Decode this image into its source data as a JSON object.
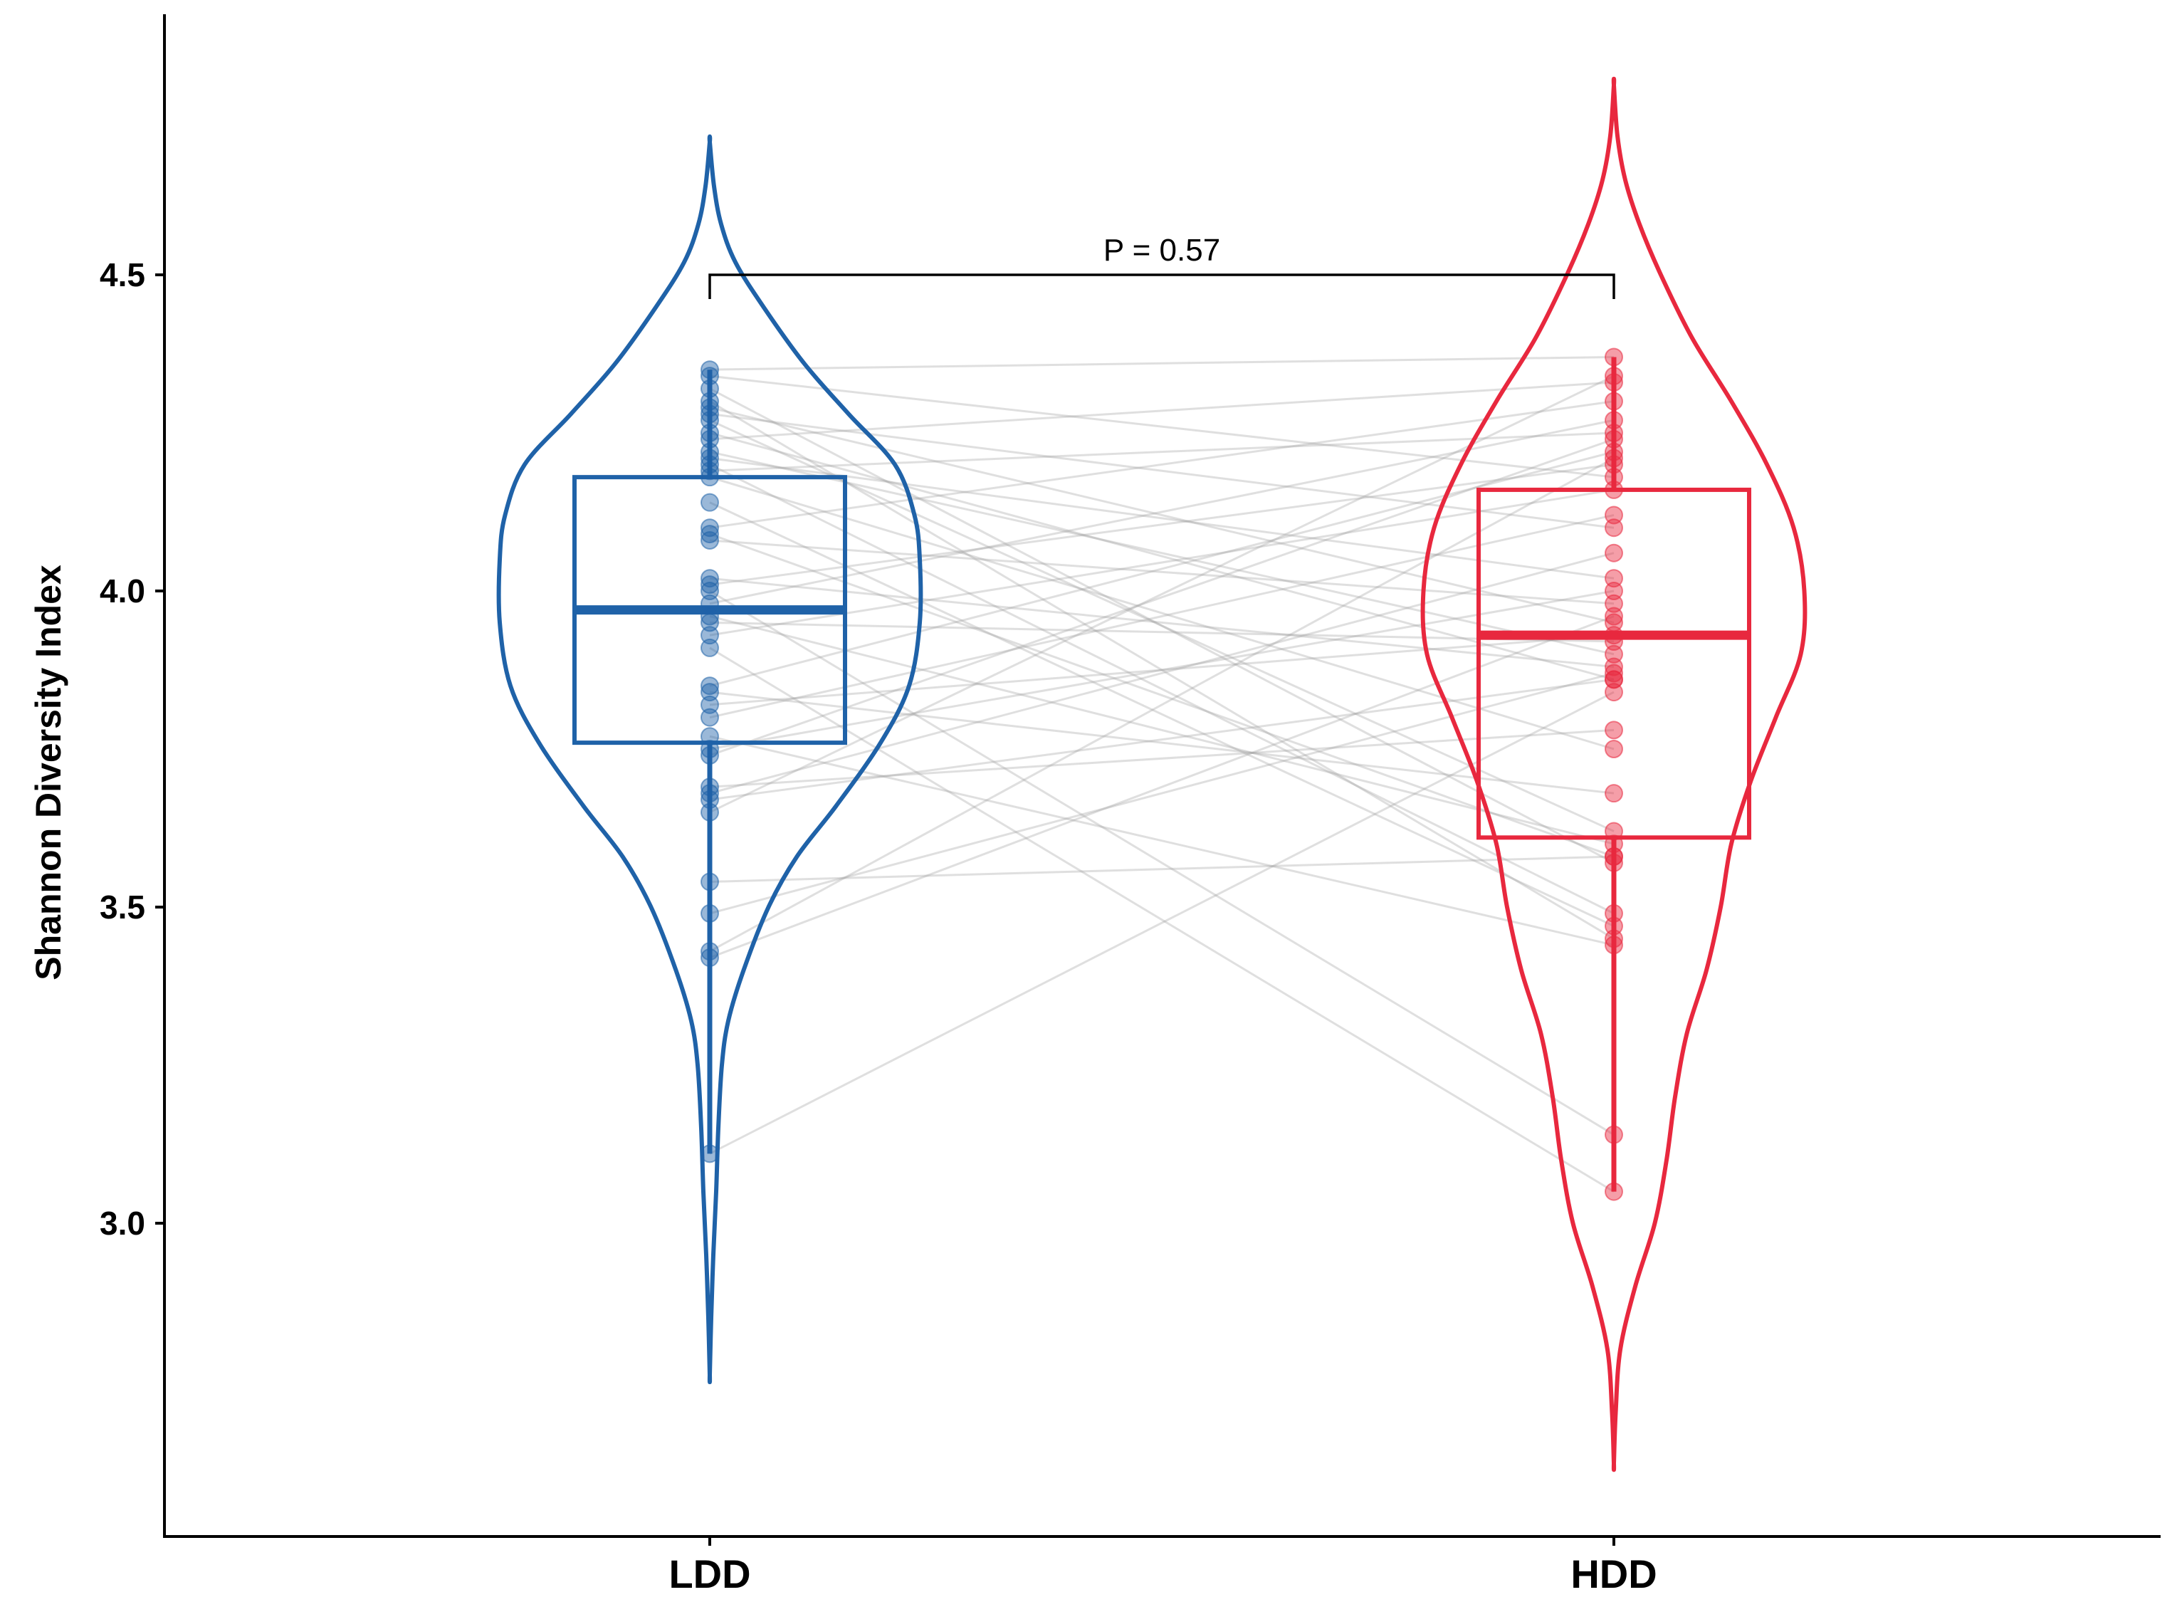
{
  "chart_data": {
    "type": "violin",
    "ylabel": "Shannon Diversity Index",
    "xlabel": "",
    "ylim": [
      2.5,
      4.88
    ],
    "yticks": [
      3.0,
      3.5,
      4.0,
      4.5
    ],
    "ytick_labels": [
      "3.0",
      "3.5",
      "4.0",
      "4.5"
    ],
    "grid": false,
    "legend": "none",
    "categories": [
      "LDD",
      "HDD"
    ],
    "colors": {
      "LDD": "#1f62a8",
      "HDD": "#e8283e",
      "pair_line": "#9a9a9a"
    },
    "annotation": {
      "text": "P = 0.57",
      "between": [
        "LDD",
        "HDD"
      ],
      "y": 4.5
    },
    "groups": [
      {
        "name": "LDD",
        "color": "#1f62a8",
        "box": {
          "q1": 3.76,
          "median": 3.97,
          "q3": 4.18,
          "whisker_low": 3.11,
          "whisker_high": 4.35
        },
        "violin_range": [
          2.76,
          4.71
        ]
      },
      {
        "name": "HDD",
        "color": "#e8283e",
        "box": {
          "q1": 3.61,
          "median": 3.93,
          "q3": 4.16,
          "whisker_low": 3.05,
          "whisker_high": 4.37
        },
        "violin_range": [
          2.62,
          4.8
        ]
      }
    ],
    "pairs": [
      [
        4.35,
        4.37
      ],
      [
        4.34,
        4.18
      ],
      [
        4.32,
        3.57
      ],
      [
        4.3,
        3.45
      ],
      [
        4.29,
        3.95
      ],
      [
        4.28,
        4.1
      ],
      [
        4.27,
        3.62
      ],
      [
        4.25,
        3.86
      ],
      [
        4.24,
        4.33
      ],
      [
        4.22,
        3.9
      ],
      [
        4.21,
        4.02
      ],
      [
        4.2,
        3.49
      ],
      [
        4.19,
        4.25
      ],
      [
        4.18,
        3.75
      ],
      [
        4.14,
        3.47
      ],
      [
        4.1,
        4.3
      ],
      [
        4.09,
        3.58
      ],
      [
        4.08,
        3.98
      ],
      [
        4.02,
        3.88
      ],
      [
        4.01,
        4.2
      ],
      [
        4.0,
        3.14
      ],
      [
        3.98,
        4.27
      ],
      [
        3.96,
        3.6
      ],
      [
        3.95,
        3.92
      ],
      [
        3.93,
        4.16
      ],
      [
        3.91,
        3.05
      ],
      [
        3.85,
        4.22
      ],
      [
        3.84,
        3.68
      ],
      [
        3.82,
        3.93
      ],
      [
        3.8,
        4.12
      ],
      [
        3.77,
        3.44
      ],
      [
        3.75,
        4.0
      ],
      [
        3.74,
        4.24
      ],
      [
        3.69,
        3.78
      ],
      [
        3.68,
        4.06
      ],
      [
        3.67,
        3.86
      ],
      [
        3.65,
        4.34
      ],
      [
        3.54,
        3.58
      ],
      [
        3.49,
        3.87
      ],
      [
        3.43,
        4.21
      ],
      [
        3.42,
        3.96
      ],
      [
        3.11,
        3.84
      ]
    ]
  }
}
